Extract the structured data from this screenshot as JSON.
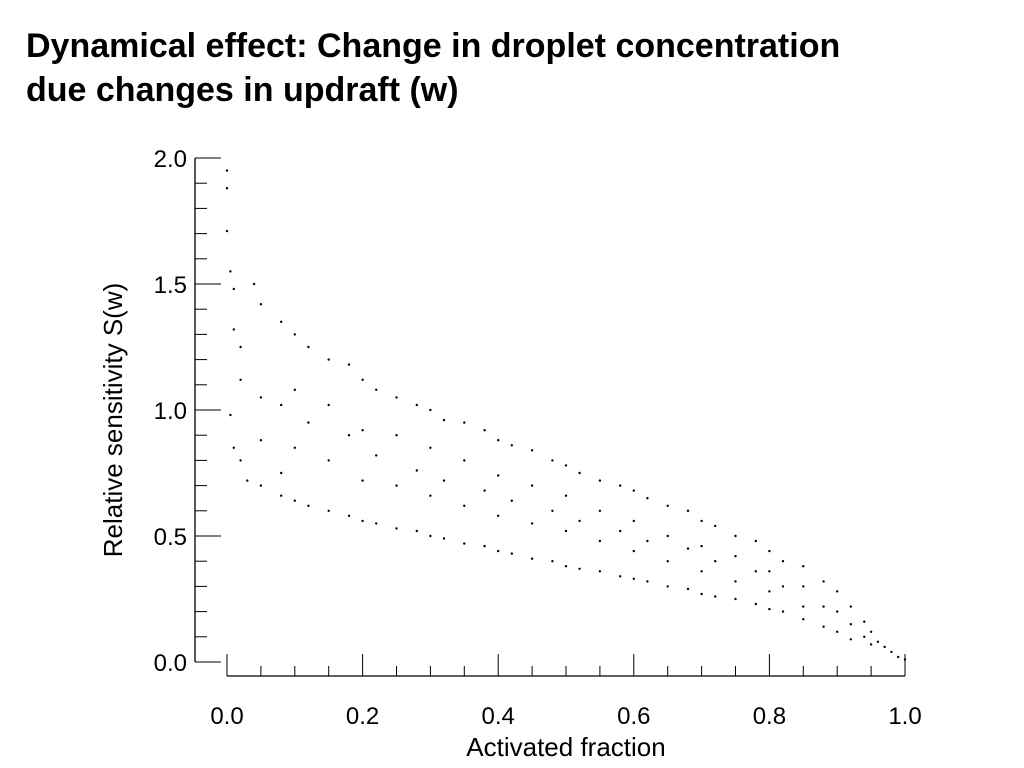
{
  "slide": {
    "title_line1": "Dynamical effect: Change in droplet concentration",
    "title_line2": "due changes in updraft (w)"
  },
  "chart_data": {
    "type": "scatter",
    "title": "",
    "xlabel": "Activated fraction",
    "ylabel": "Relative sensitivity S(w)",
    "xlim": [
      0.0,
      1.0
    ],
    "ylim": [
      0.0,
      2.0
    ],
    "xticks": [
      0.0,
      0.2,
      0.4,
      0.6,
      0.8,
      1.0
    ],
    "xtick_labels": [
      "0.0",
      "0.2",
      "0.4",
      "0.6",
      "0.8",
      "1.0"
    ],
    "yticks": [
      0.0,
      0.5,
      1.0,
      1.5,
      2.0
    ],
    "ytick_labels": [
      "0.0",
      "0.5",
      "1.0",
      "1.5",
      "2.0"
    ],
    "grid": false,
    "marker_color": "#000000",
    "series": [
      {
        "points": [
          [
            0.0,
            1.95
          ],
          [
            0.0,
            1.88
          ],
          [
            0.0,
            1.71
          ],
          [
            0.005,
            1.55
          ],
          [
            0.01,
            1.48
          ],
          [
            0.01,
            1.32
          ],
          [
            0.02,
            1.25
          ],
          [
            0.02,
            1.12
          ],
          [
            0.005,
            0.98
          ],
          [
            0.01,
            0.85
          ],
          [
            0.02,
            0.8
          ],
          [
            0.03,
            0.72
          ],
          [
            0.04,
            1.5
          ],
          [
            0.05,
            1.42
          ],
          [
            0.05,
            1.05
          ],
          [
            0.05,
            0.88
          ],
          [
            0.05,
            0.7
          ],
          [
            0.08,
            1.35
          ],
          [
            0.08,
            1.02
          ],
          [
            0.08,
            0.75
          ],
          [
            0.08,
            0.66
          ],
          [
            0.1,
            1.3
          ],
          [
            0.1,
            1.08
          ],
          [
            0.1,
            0.85
          ],
          [
            0.1,
            0.64
          ],
          [
            0.12,
            1.25
          ],
          [
            0.12,
            0.95
          ],
          [
            0.12,
            0.62
          ],
          [
            0.15,
            1.2
          ],
          [
            0.15,
            1.02
          ],
          [
            0.15,
            0.8
          ],
          [
            0.15,
            0.6
          ],
          [
            0.18,
            1.18
          ],
          [
            0.18,
            0.9
          ],
          [
            0.18,
            0.58
          ],
          [
            0.2,
            1.12
          ],
          [
            0.2,
            0.92
          ],
          [
            0.2,
            0.72
          ],
          [
            0.2,
            0.56
          ],
          [
            0.22,
            1.08
          ],
          [
            0.22,
            0.82
          ],
          [
            0.22,
            0.55
          ],
          [
            0.25,
            1.05
          ],
          [
            0.25,
            0.9
          ],
          [
            0.25,
            0.7
          ],
          [
            0.25,
            0.53
          ],
          [
            0.28,
            1.02
          ],
          [
            0.28,
            0.76
          ],
          [
            0.28,
            0.52
          ],
          [
            0.3,
            1.0
          ],
          [
            0.3,
            0.85
          ],
          [
            0.3,
            0.66
          ],
          [
            0.3,
            0.5
          ],
          [
            0.32,
            0.96
          ],
          [
            0.32,
            0.72
          ],
          [
            0.32,
            0.49
          ],
          [
            0.35,
            0.95
          ],
          [
            0.35,
            0.8
          ],
          [
            0.35,
            0.62
          ],
          [
            0.35,
            0.47
          ],
          [
            0.38,
            0.92
          ],
          [
            0.38,
            0.68
          ],
          [
            0.38,
            0.46
          ],
          [
            0.4,
            0.88
          ],
          [
            0.4,
            0.74
          ],
          [
            0.4,
            0.58
          ],
          [
            0.4,
            0.44
          ],
          [
            0.42,
            0.86
          ],
          [
            0.42,
            0.64
          ],
          [
            0.42,
            0.43
          ],
          [
            0.45,
            0.84
          ],
          [
            0.45,
            0.7
          ],
          [
            0.45,
            0.55
          ],
          [
            0.45,
            0.41
          ],
          [
            0.48,
            0.8
          ],
          [
            0.48,
            0.6
          ],
          [
            0.48,
            0.4
          ],
          [
            0.5,
            0.78
          ],
          [
            0.5,
            0.66
          ],
          [
            0.5,
            0.52
          ],
          [
            0.5,
            0.38
          ],
          [
            0.52,
            0.75
          ],
          [
            0.52,
            0.56
          ],
          [
            0.52,
            0.37
          ],
          [
            0.55,
            0.72
          ],
          [
            0.55,
            0.6
          ],
          [
            0.55,
            0.48
          ],
          [
            0.55,
            0.36
          ],
          [
            0.58,
            0.7
          ],
          [
            0.58,
            0.52
          ],
          [
            0.58,
            0.34
          ],
          [
            0.6,
            0.68
          ],
          [
            0.6,
            0.56
          ],
          [
            0.6,
            0.44
          ],
          [
            0.6,
            0.33
          ],
          [
            0.62,
            0.65
          ],
          [
            0.62,
            0.48
          ],
          [
            0.62,
            0.32
          ],
          [
            0.65,
            0.62
          ],
          [
            0.65,
            0.5
          ],
          [
            0.65,
            0.4
          ],
          [
            0.65,
            0.3
          ],
          [
            0.68,
            0.6
          ],
          [
            0.68,
            0.45
          ],
          [
            0.68,
            0.29
          ],
          [
            0.7,
            0.56
          ],
          [
            0.7,
            0.46
          ],
          [
            0.7,
            0.36
          ],
          [
            0.7,
            0.27
          ],
          [
            0.72,
            0.54
          ],
          [
            0.72,
            0.4
          ],
          [
            0.72,
            0.26
          ],
          [
            0.75,
            0.5
          ],
          [
            0.75,
            0.42
          ],
          [
            0.75,
            0.32
          ],
          [
            0.75,
            0.25
          ],
          [
            0.78,
            0.48
          ],
          [
            0.78,
            0.36
          ],
          [
            0.78,
            0.23
          ],
          [
            0.8,
            0.44
          ],
          [
            0.8,
            0.36
          ],
          [
            0.8,
            0.28
          ],
          [
            0.8,
            0.21
          ],
          [
            0.82,
            0.4
          ],
          [
            0.82,
            0.3
          ],
          [
            0.82,
            0.2
          ],
          [
            0.85,
            0.38
          ],
          [
            0.85,
            0.3
          ],
          [
            0.85,
            0.22
          ],
          [
            0.85,
            0.17
          ],
          [
            0.88,
            0.32
          ],
          [
            0.88,
            0.22
          ],
          [
            0.88,
            0.14
          ],
          [
            0.9,
            0.28
          ],
          [
            0.9,
            0.2
          ],
          [
            0.9,
            0.12
          ],
          [
            0.92,
            0.22
          ],
          [
            0.92,
            0.15
          ],
          [
            0.92,
            0.09
          ],
          [
            0.94,
            0.16
          ],
          [
            0.94,
            0.1
          ],
          [
            0.95,
            0.12
          ],
          [
            0.95,
            0.07
          ],
          [
            0.96,
            0.08
          ],
          [
            0.97,
            0.06
          ],
          [
            0.98,
            0.04
          ],
          [
            0.99,
            0.02
          ],
          [
            1.0,
            0.01
          ]
        ]
      }
    ]
  }
}
